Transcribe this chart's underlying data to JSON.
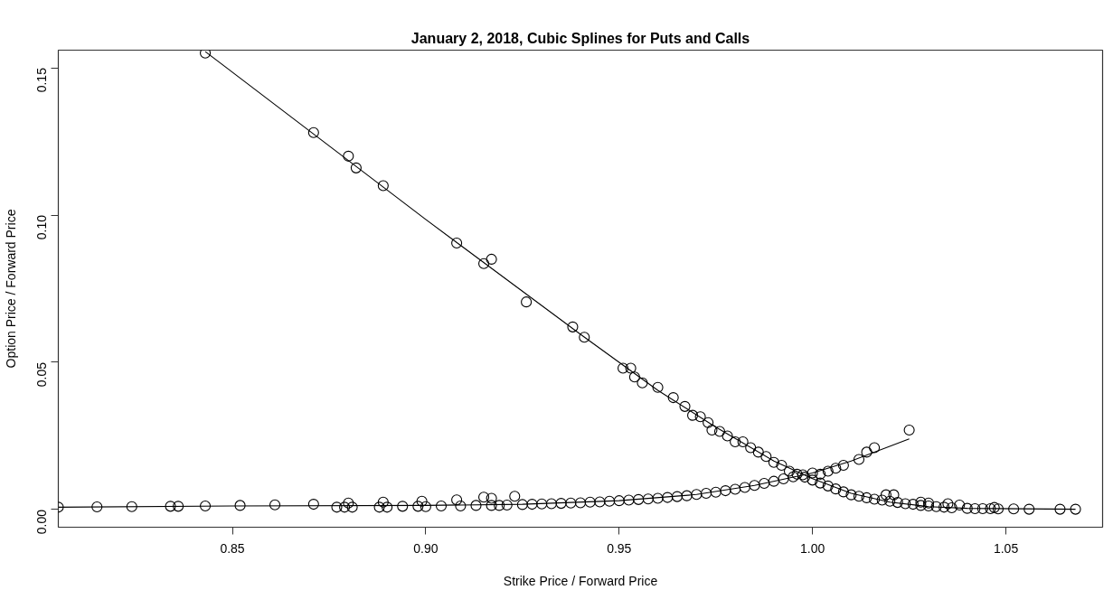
{
  "chart_data": {
    "type": "scatter",
    "title": "January 2, 2018, Cubic Splines for Puts and Calls",
    "xlabel": "Strike Price / Forward Price",
    "ylabel": "Option Price / Forward Price",
    "xlim": [
      0.805,
      1.075
    ],
    "ylim": [
      -0.006,
      0.156
    ],
    "xticks": [
      0.85,
      {
        "value": 0.9,
        "label": "0.90"
      },
      0.95,
      {
        "value": 1.0,
        "label": "1.00"
      },
      1.05
    ],
    "yticks": [
      {
        "value": 0,
        "label": "0.00"
      },
      0.05,
      {
        "value": 0.1,
        "label": "0.10"
      },
      0.15
    ],
    "grid": false,
    "marker": "circle",
    "series": [
      {
        "color": "#000000",
        "x": [
          0.843,
          0.871,
          0.88,
          0.882,
          0.889,
          0.908,
          0.915,
          0.917,
          0.926,
          0.938,
          0.941,
          0.951,
          0.953,
          0.954,
          0.956,
          0.96,
          0.964,
          0.967,
          0.969,
          0.971,
          0.973,
          0.974,
          0.976,
          0.978,
          0.98,
          0.982,
          0.984,
          0.986,
          0.988,
          0.99,
          0.992,
          0.994,
          0.996,
          0.998,
          1.0,
          1.002,
          1.004,
          1.006,
          1.008,
          1.01,
          1.012,
          1.014,
          1.016,
          1.018,
          1.019,
          1.021,
          1.02,
          1.022,
          1.024,
          1.026,
          1.028,
          1.03,
          1.028,
          1.03,
          1.032,
          1.034,
          1.035,
          1.036,
          1.038,
          1.04,
          1.042,
          1.044,
          1.046,
          1.047,
          1.048,
          1.052,
          1.056,
          1.064,
          1.068
        ],
        "values": [
          0.155,
          0.128,
          0.12,
          0.116,
          0.11,
          0.0905,
          0.0835,
          0.085,
          0.0705,
          0.062,
          0.0585,
          0.048,
          0.048,
          0.045,
          0.043,
          0.0415,
          0.038,
          0.035,
          0.032,
          0.0315,
          0.0295,
          0.027,
          0.0265,
          0.025,
          0.023,
          0.023,
          0.021,
          0.0195,
          0.018,
          0.016,
          0.015,
          0.013,
          0.012,
          0.011,
          0.01,
          0.009,
          0.008,
          0.007,
          0.006,
          0.005,
          0.0045,
          0.004,
          0.0035,
          0.0032,
          0.005,
          0.005,
          0.0028,
          0.0024,
          0.002,
          0.0018,
          0.0025,
          0.0022,
          0.0014,
          0.0012,
          0.001,
          0.0008,
          0.002,
          0.0006,
          0.0015,
          0.0004,
          0.0003,
          0.0003,
          0.0003,
          0.0007,
          0.0002,
          0.0002,
          0.0001,
          0.0001,
          0.0001
        ]
      },
      {
        "color": "#000000",
        "x": [
          0.805,
          0.815,
          0.824,
          0.834,
          0.836,
          0.843,
          0.852,
          0.861,
          0.871,
          0.877,
          0.879,
          0.88,
          0.881,
          0.888,
          0.889,
          0.89,
          0.894,
          0.898,
          0.899,
          0.9,
          0.904,
          0.908,
          0.909,
          0.913,
          0.915,
          0.917,
          0.917,
          0.919,
          0.921,
          0.923,
          0.925,
          0.9275,
          0.93,
          0.9325,
          0.935,
          0.9375,
          0.94,
          0.9425,
          0.945,
          0.9475,
          0.95,
          0.9525,
          0.955,
          0.9575,
          0.96,
          0.9625,
          0.965,
          0.9675,
          0.97,
          0.9725,
          0.975,
          0.9775,
          0.98,
          0.9825,
          0.985,
          0.9875,
          0.99,
          0.9925,
          0.995,
          0.9975,
          1.0,
          1.002,
          1.004,
          1.006,
          1.008,
          1.012,
          1.014,
          1.016,
          1.025
        ],
        "values": [
          0.0008,
          0.0009,
          0.001,
          0.0011,
          0.0011,
          0.0012,
          0.0014,
          0.0016,
          0.0018,
          0.0008,
          0.0008,
          0.0022,
          0.0008,
          0.0008,
          0.0025,
          0.0008,
          0.0011,
          0.0011,
          0.0028,
          0.001,
          0.0012,
          0.0033,
          0.0012,
          0.0014,
          0.0042,
          0.0038,
          0.0014,
          0.0014,
          0.0015,
          0.0045,
          0.0017,
          0.0018,
          0.0019,
          0.002,
          0.0021,
          0.0022,
          0.0023,
          0.0025,
          0.0026,
          0.0028,
          0.003,
          0.0032,
          0.0034,
          0.0036,
          0.0038,
          0.0041,
          0.0044,
          0.0047,
          0.0051,
          0.0055,
          0.0059,
          0.0064,
          0.0069,
          0.0075,
          0.0082,
          0.0089,
          0.0096,
          0.0104,
          0.0111,
          0.0118,
          0.0124,
          0.012,
          0.013,
          0.014,
          0.015,
          0.017,
          0.0195,
          0.021,
          0.027
        ]
      },
      {
        "type": "line",
        "color": "#000000",
        "marker": "none",
        "x": [
          0.843,
          0.9,
          0.94,
          0.96,
          0.975,
          0.99,
          1.0,
          1.01,
          1.02,
          1.03,
          1.04,
          1.068
        ],
        "values": [
          0.1555,
          0.0985,
          0.0595,
          0.0405,
          0.028,
          0.0165,
          0.0105,
          0.0055,
          0.0025,
          0.001,
          0.0004,
          0.0001
        ]
      },
      {
        "type": "line",
        "color": "#000000",
        "marker": "none",
        "x": [
          0.805,
          0.85,
          0.9,
          0.925,
          0.95,
          0.97,
          0.985,
          1.0,
          1.01,
          1.025
        ],
        "values": [
          0.0008,
          0.0012,
          0.0014,
          0.0018,
          0.003,
          0.0051,
          0.0082,
          0.0124,
          0.0165,
          0.024
        ]
      }
    ]
  }
}
